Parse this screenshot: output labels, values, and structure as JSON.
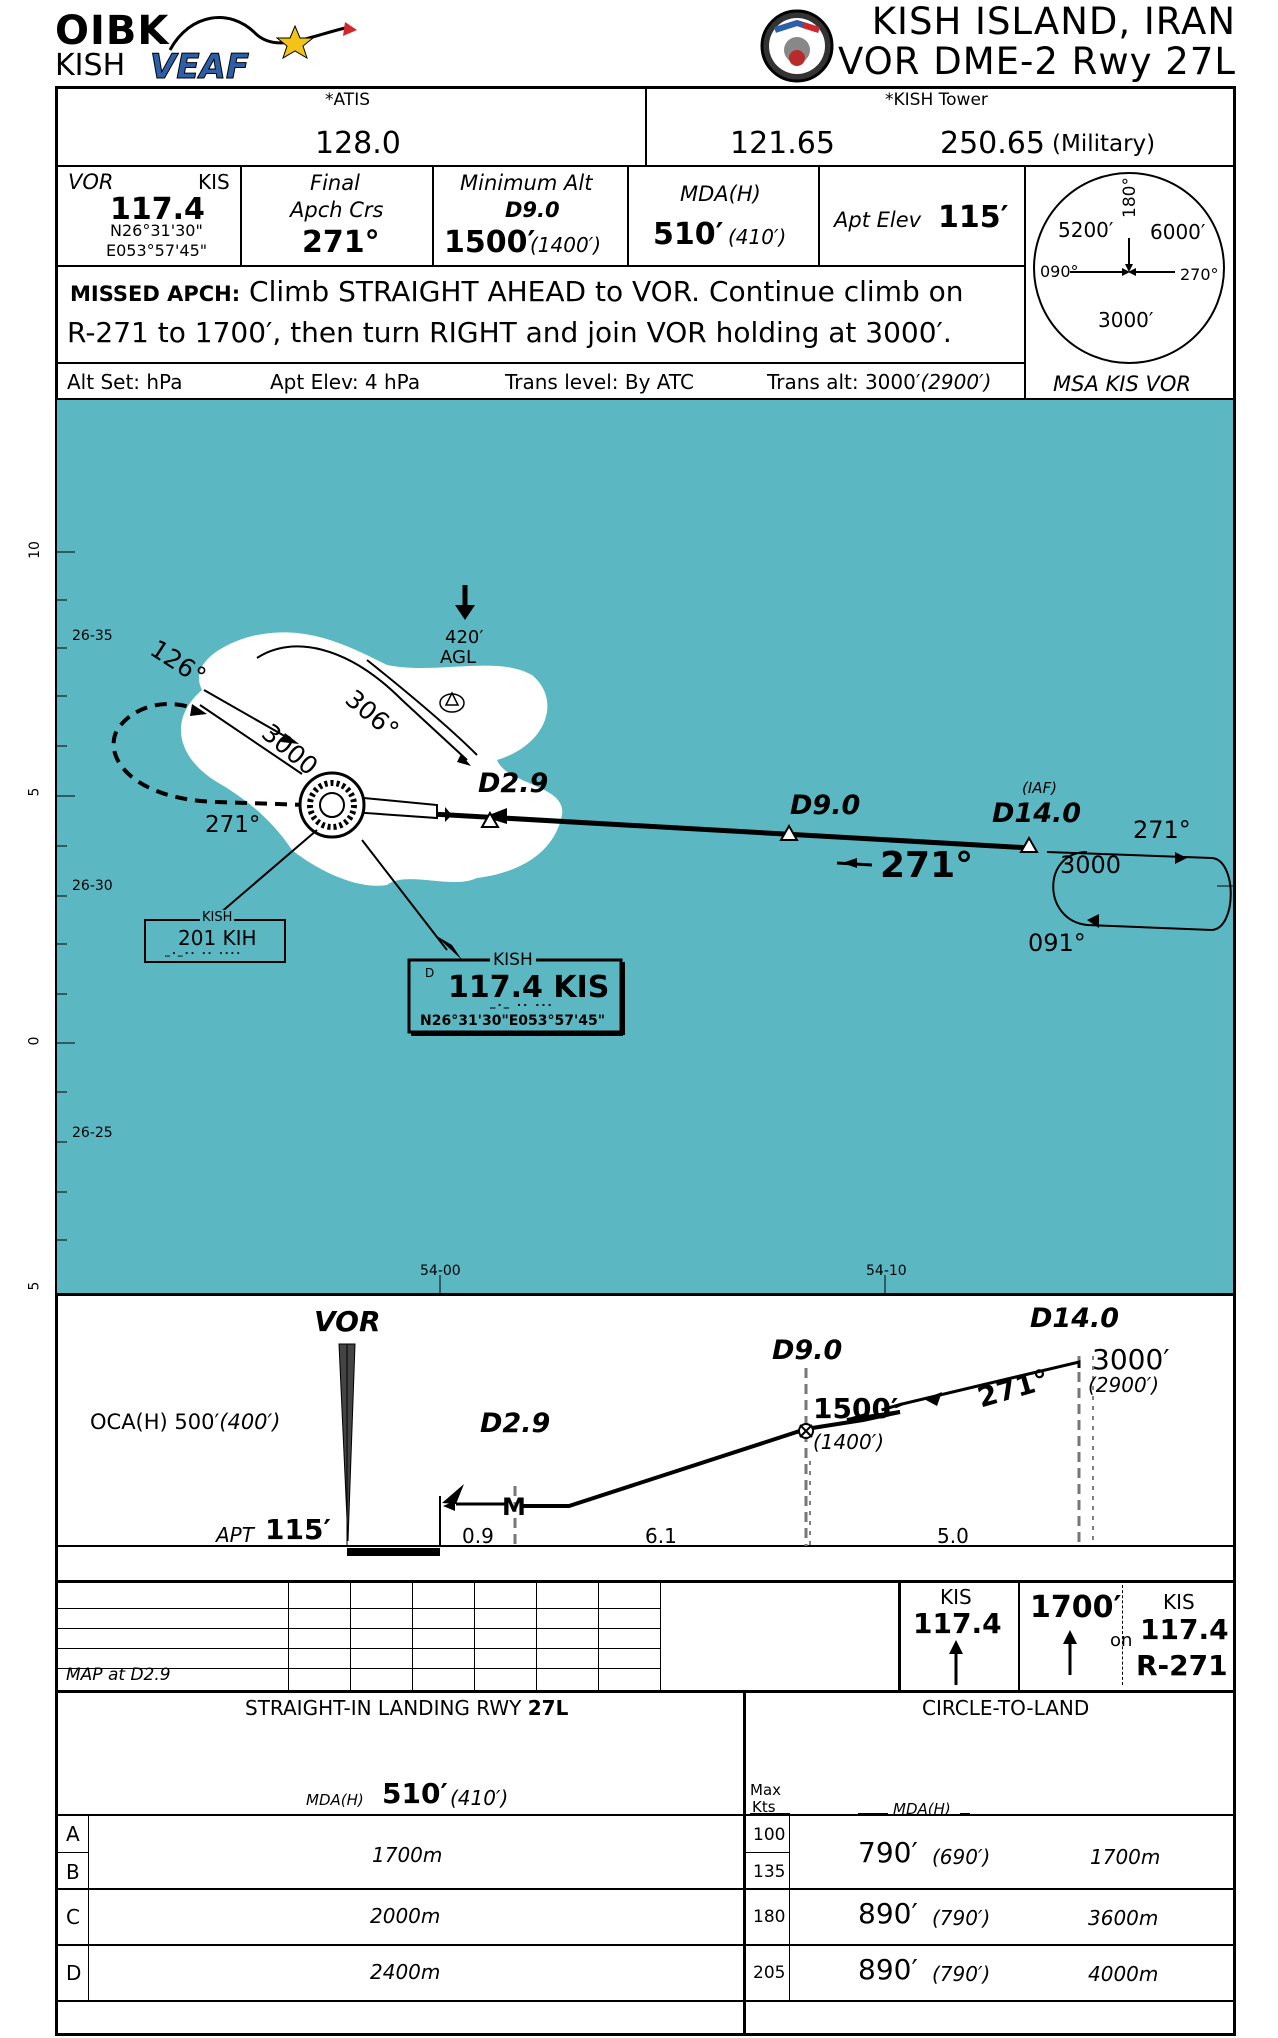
{
  "header": {
    "icao": "OIBK",
    "city_code": "KISH",
    "logo_text": "VEAF",
    "location": "KISH ISLAND, IRAN",
    "procedure": "VOR DME-2 Rwy 27L"
  },
  "comms": {
    "atis_label": "*ATIS",
    "atis_freq": "128.0",
    "tower_label": "*KISH Tower",
    "tower_freq": "121.65",
    "tower_mil_freq": "250.65",
    "tower_mil_note": "(Military)"
  },
  "briefing": {
    "vor_label": "VOR",
    "vor_ident": "KIS",
    "vor_freq": "117.4",
    "vor_lat": "N26°31'30\"",
    "vor_lon": "E053°57'45\"",
    "final_label_1": "Final",
    "final_label_2": "Apch Crs",
    "final_crs": "271°",
    "min_alt_label": "Minimum Alt",
    "min_alt_fix": "D9.0",
    "min_alt_value": "1500′",
    "min_alt_height": "(1400′)",
    "mda_label": "MDA(H)",
    "mda_value": "510′",
    "mda_height": "(410′)",
    "apt_elev_label": "Apt Elev",
    "apt_elev_value": "115′"
  },
  "missed_approach": {
    "label": "MISSED APCH:",
    "line1": "Climb STRAIGHT AHEAD to VOR. Continue climb on",
    "line2": "R-271 to 1700′, then turn RIGHT and join VOR holding at 3000′."
  },
  "settings": {
    "alt_set": "Alt Set: hPa",
    "apt_elev": "Apt Elev: 4 hPa",
    "trans_level": "Trans level: By ATC",
    "trans_alt": "Trans alt: 3000′",
    "trans_alt_height": "(2900′)"
  },
  "msa": {
    "label": "MSA KIS VOR",
    "alt_nw": "5200′",
    "alt_ne": "6000′",
    "alt_s": "3000′",
    "brg_180": "180°",
    "brg_090": "090°",
    "brg_270": "270°"
  },
  "plan_view": {
    "lat_labels": [
      "26-35",
      "26-30",
      "26-25"
    ],
    "lon_labels": [
      "54-00",
      "54-10"
    ],
    "scale_labels": [
      "10",
      "5",
      "0",
      "5"
    ],
    "obstacle_height": "420′",
    "obstacle_ref": "AGL",
    "fix_d29": "D2.9",
    "fix_d90": "D9.0",
    "fix_iaf_note": "(IAF)",
    "fix_d140": "D14.0",
    "inbound_crs": "271°",
    "hold_inbound": "271°",
    "hold_alt": "3000",
    "hold_outbound": "091°",
    "vor_hold_inbound": "126°",
    "vor_hold_outbound": "306°",
    "vor_hold_alt": "3000",
    "vor_hold_crs": "271°",
    "ndb_name": "KISH",
    "ndb_freq": "201 KIH",
    "ndb_morse": "_._.. .. ....",
    "vor_box_name": "KISH",
    "vor_box_prefix": "D",
    "vor_box_freq": "117.4 KIS",
    "vor_box_morse": "_._ .. ...",
    "vor_box_coord": "N26°31'30\"E053°57'45\""
  },
  "profile": {
    "vor_label": "VOR",
    "d29_label": "D2.9",
    "d90_label": "D9.0",
    "d140_label": "D14.0",
    "oca_label": "OCA(H) 500′",
    "oca_height": "(400′)",
    "apt_label": "APT",
    "apt_elev": "115′",
    "alt_1500": "1500′",
    "alt_1400": "(1400′)",
    "alt_3000": "3000′",
    "alt_2900": "(2900′)",
    "crs_label": "271°",
    "map_symbol": "M",
    "dist_09": "0.9",
    "dist_61": "6.1",
    "dist_50": "5.0"
  },
  "timing": {
    "map_note": "MAP at D2.9"
  },
  "missed_icons": {
    "kis_label": "KIS",
    "kis_freq": "117.4",
    "alt": "1700′",
    "on_label": "on",
    "kis2_label": "KIS",
    "kis2_freq": "117.4",
    "radial": "R-271"
  },
  "minima": {
    "straight_title": "STRAIGHT-IN LANDING RWY",
    "straight_rwy": "27L",
    "straight_mda_label": "MDA(H)",
    "straight_mda": "510′",
    "straight_mda_h": "(410′)",
    "circle_title": "CIRCLE-TO-LAND",
    "max_kts_1": "Max",
    "max_kts_2": "Kts",
    "circle_mda_label": "MDA(H)",
    "rows": [
      {
        "cat": "A",
        "kts": "100",
        "vis": "1700m"
      },
      {
        "cat": "B",
        "kts": "135",
        "vis": ""
      },
      {
        "cat": "C",
        "kts": "180",
        "vis": "2000m"
      },
      {
        "cat": "D",
        "kts": "205",
        "vis": "2400m"
      }
    ],
    "circle_rows": [
      {
        "mda": "790′",
        "h": "(690′)",
        "vis": "1700m"
      },
      {
        "mda": "890′",
        "h": "(790′)",
        "vis": "3600m"
      },
      {
        "mda": "890′",
        "h": "(790′)",
        "vis": "4000m"
      }
    ]
  },
  "colors": {
    "water": "#5bb8c2",
    "land": "#ffffff",
    "ink": "#000000",
    "logo_blue": "#2c5fa8",
    "logo_red": "#d0272c",
    "logo_star": "#f2c418"
  }
}
